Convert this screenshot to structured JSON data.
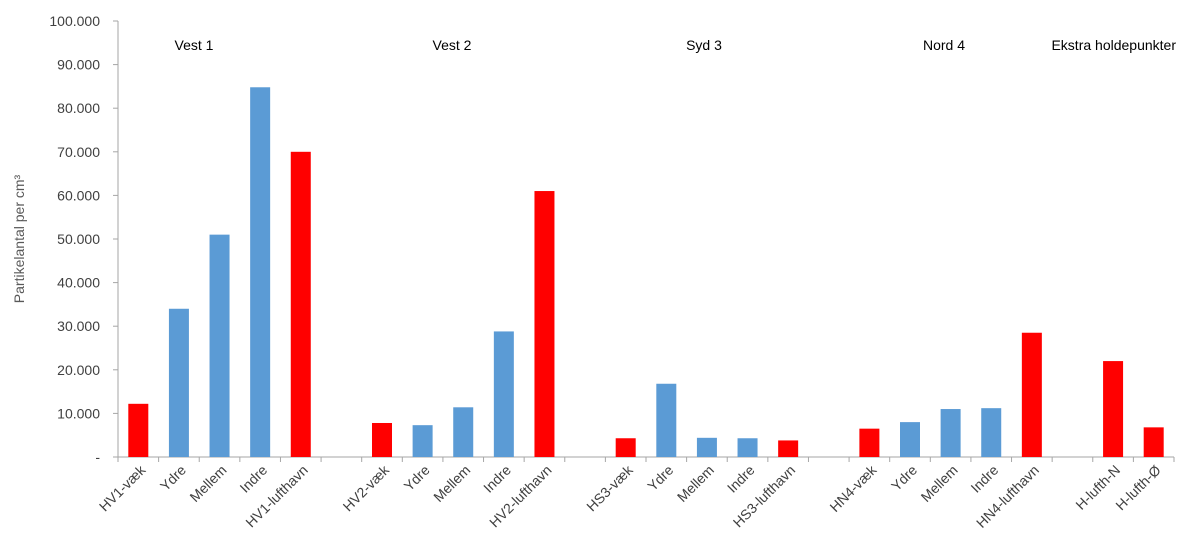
{
  "chart_data": {
    "type": "bar",
    "ylabel": "Partikelantal per cm³",
    "ylim": [
      0,
      100000
    ],
    "yticks": [
      "-",
      "10.000",
      "20.000",
      "30.000",
      "40.000",
      "50.000",
      "60.000",
      "70.000",
      "80.000",
      "90.000",
      "100.000"
    ],
    "grid": false,
    "legend": "none",
    "colors": {
      "airport_side": "#ff0000",
      "inside": "#5b9bd5"
    },
    "groups": [
      "Vest 1",
      "Vest 2",
      "Syd 3",
      "Nord 4",
      "Ekstra holdepunkter"
    ],
    "categories": [
      "HV1-væk",
      "Ydre",
      "Mellem",
      "Indre",
      "HV1-lufthavn",
      "",
      "HV2-væk",
      "Ydre",
      "Mellem",
      "Indre",
      "HV2-lufthavn",
      "",
      "HS3-væk",
      "Ydre",
      "Mellem",
      "Indre",
      "HS3-lufthavn",
      "",
      "HN4-væk",
      "Ydre",
      "Mellem",
      "Indre",
      "HN4-lufthavn",
      "",
      "H-lufth-N",
      "H-lufth-Ø"
    ],
    "values": [
      12200,
      34000,
      51000,
      84800,
      70000,
      null,
      7800,
      7300,
      11400,
      28800,
      61000,
      null,
      4300,
      16800,
      4400,
      4300,
      3800,
      null,
      6500,
      8000,
      11000,
      11200,
      28500,
      null,
      22000,
      6800
    ],
    "bar_colors": [
      "#ff0000",
      "#5b9bd5",
      "#5b9bd5",
      "#5b9bd5",
      "#ff0000",
      null,
      "#ff0000",
      "#5b9bd5",
      "#5b9bd5",
      "#5b9bd5",
      "#ff0000",
      null,
      "#ff0000",
      "#5b9bd5",
      "#5b9bd5",
      "#5b9bd5",
      "#ff0000",
      null,
      "#ff0000",
      "#5b9bd5",
      "#5b9bd5",
      "#5b9bd5",
      "#ff0000",
      null,
      "#ff0000",
      "#ff0000"
    ]
  }
}
